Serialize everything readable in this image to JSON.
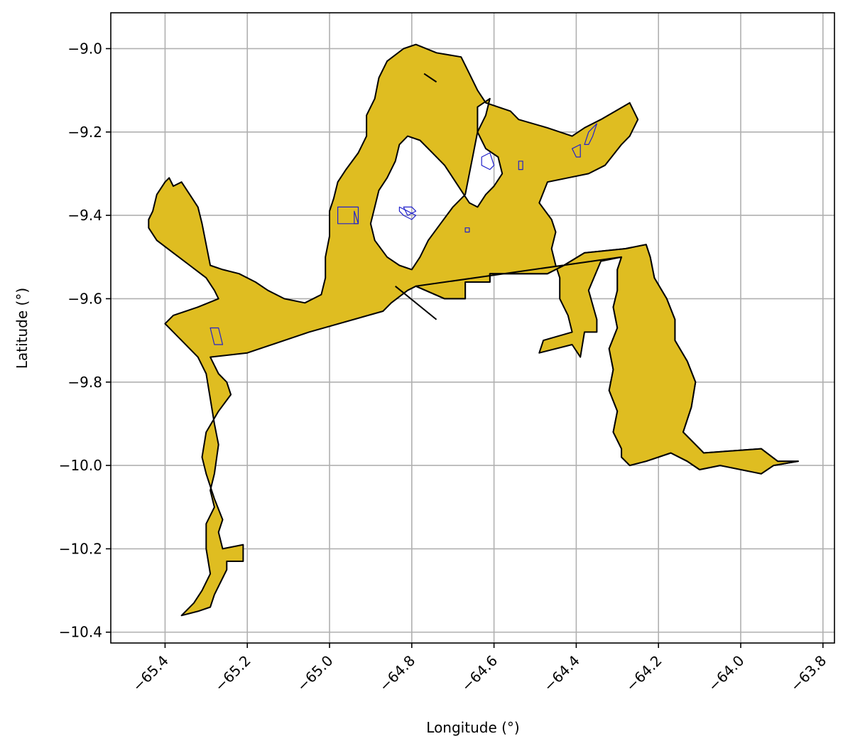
{
  "chart_data": {
    "type": "map",
    "xlabel": "Longitude (°)",
    "ylabel": "Latitude (°)",
    "xlim": [
      -65.532,
      -63.772
    ],
    "ylim": [
      -10.426,
      -8.914
    ],
    "xticks": [
      -65.4,
      -65.2,
      -65.0,
      -64.8,
      -64.6,
      -64.4,
      -64.2,
      -64.0,
      -63.8
    ],
    "xtick_labels": [
      "−65.4",
      "−65.2",
      "−65.0",
      "−64.8",
      "−64.6",
      "−64.4",
      "−64.2",
      "−64.0",
      "−63.8"
    ],
    "yticks": [
      -9.0,
      -9.2,
      -9.4,
      -9.6,
      -9.8,
      -10.0,
      -10.2,
      -10.4
    ],
    "ytick_labels": [
      "−9.0",
      "−9.2",
      "−9.4",
      "−9.6",
      "−9.8",
      "−10.0",
      "−10.2",
      "−10.4"
    ],
    "grid": true,
    "fill_color": "#DFBD21",
    "edge_color": "#000000",
    "inner_edge_color": "#2222cc",
    "main_region": [
      [
        -65.36,
        -10.36
      ],
      [
        -65.32,
        -10.35
      ],
      [
        -65.29,
        -10.34
      ],
      [
        -65.28,
        -10.31
      ],
      [
        -65.26,
        -10.27
      ],
      [
        -65.25,
        -10.25
      ],
      [
        -65.25,
        -10.23
      ],
      [
        -65.21,
        -10.23
      ],
      [
        -65.21,
        -10.19
      ],
      [
        -65.26,
        -10.2
      ],
      [
        -65.27,
        -10.16
      ],
      [
        -65.26,
        -10.13
      ],
      [
        -65.28,
        -10.08
      ],
      [
        -65.29,
        -10.05
      ],
      [
        -65.3,
        -10.02
      ],
      [
        -65.31,
        -9.98
      ],
      [
        -65.3,
        -9.92
      ],
      [
        -65.27,
        -9.87
      ],
      [
        -65.24,
        -9.83
      ],
      [
        -65.25,
        -9.8
      ],
      [
        -65.27,
        -9.78
      ],
      [
        -65.29,
        -9.74
      ],
      [
        -65.2,
        -9.73
      ],
      [
        -65.05,
        -9.68
      ],
      [
        -64.87,
        -9.63
      ],
      [
        -64.85,
        -9.61
      ],
      [
        -64.81,
        -9.58
      ],
      [
        -64.79,
        -9.57
      ],
      [
        -64.72,
        -9.6
      ],
      [
        -64.67,
        -9.6
      ],
      [
        -64.67,
        -9.56
      ],
      [
        -64.61,
        -9.56
      ],
      [
        -64.61,
        -9.54
      ],
      [
        -64.47,
        -9.54
      ],
      [
        -64.43,
        -9.52
      ],
      [
        -64.38,
        -9.49
      ],
      [
        -64.28,
        -9.48
      ],
      [
        -64.23,
        -9.47
      ],
      [
        -64.22,
        -9.5
      ],
      [
        -64.21,
        -9.55
      ],
      [
        -64.18,
        -9.6
      ],
      [
        -64.16,
        -9.65
      ],
      [
        -64.16,
        -9.7
      ],
      [
        -64.13,
        -9.75
      ],
      [
        -64.11,
        -9.8
      ],
      [
        -64.12,
        -9.86
      ],
      [
        -64.14,
        -9.92
      ],
      [
        -64.1,
        -9.96
      ],
      [
        -64.09,
        -9.97
      ],
      [
        -63.95,
        -9.96
      ],
      [
        -63.91,
        -9.99
      ],
      [
        -63.86,
        -9.99
      ],
      [
        -63.92,
        -10.0
      ],
      [
        -63.95,
        -10.02
      ],
      [
        -64.05,
        -10.0
      ],
      [
        -64.1,
        -10.01
      ],
      [
        -64.13,
        -9.99
      ],
      [
        -64.17,
        -9.97
      ],
      [
        -64.23,
        -9.99
      ],
      [
        -64.27,
        -10.0
      ],
      [
        -64.29,
        -9.98
      ],
      [
        -64.29,
        -9.96
      ],
      [
        -64.31,
        -9.92
      ],
      [
        -64.3,
        -9.87
      ],
      [
        -64.32,
        -9.82
      ],
      [
        -64.31,
        -9.77
      ],
      [
        -64.32,
        -9.72
      ],
      [
        -64.3,
        -9.67
      ],
      [
        -64.31,
        -9.62
      ],
      [
        -64.3,
        -9.58
      ],
      [
        -64.3,
        -9.53
      ],
      [
        -64.29,
        -9.5
      ],
      [
        -64.34,
        -9.51
      ],
      [
        -64.37,
        -9.58
      ],
      [
        -64.35,
        -9.65
      ],
      [
        -64.35,
        -9.68
      ],
      [
        -64.38,
        -9.68
      ],
      [
        -64.39,
        -9.74
      ],
      [
        -64.41,
        -9.71
      ],
      [
        -64.49,
        -9.73
      ],
      [
        -64.48,
        -9.7
      ],
      [
        -64.41,
        -9.68
      ],
      [
        -64.42,
        -9.64
      ],
      [
        -64.44,
        -9.6
      ],
      [
        -64.44,
        -9.55
      ],
      [
        -64.45,
        -9.52
      ],
      [
        -64.46,
        -9.48
      ],
      [
        -64.45,
        -9.44
      ],
      [
        -64.46,
        -9.41
      ],
      [
        -64.49,
        -9.37
      ],
      [
        -64.47,
        -9.32
      ],
      [
        -64.42,
        -9.31
      ],
      [
        -64.37,
        -9.3
      ],
      [
        -64.33,
        -9.28
      ],
      [
        -64.29,
        -9.23
      ],
      [
        -64.27,
        -9.21
      ],
      [
        -64.25,
        -9.17
      ],
      [
        -64.27,
        -9.13
      ],
      [
        -64.34,
        -9.17
      ],
      [
        -64.38,
        -9.19
      ],
      [
        -64.41,
        -9.21
      ],
      [
        -64.47,
        -9.19
      ],
      [
        -64.54,
        -9.17
      ],
      [
        -64.56,
        -9.15
      ],
      [
        -64.59,
        -9.14
      ],
      [
        -64.62,
        -9.13
      ],
      [
        -64.64,
        -9.1
      ],
      [
        -64.66,
        -9.06
      ],
      [
        -64.68,
        -9.02
      ],
      [
        -64.74,
        -9.01
      ],
      [
        -64.79,
        -8.99
      ],
      [
        -64.82,
        -9.0
      ],
      [
        -64.86,
        -9.03
      ],
      [
        -64.88,
        -9.07
      ],
      [
        -64.89,
        -9.12
      ],
      [
        -64.91,
        -9.16
      ],
      [
        -64.91,
        -9.21
      ],
      [
        -64.93,
        -9.25
      ],
      [
        -64.96,
        -9.29
      ],
      [
        -64.98,
        -9.32
      ],
      [
        -64.99,
        -9.36
      ],
      [
        -65.0,
        -9.39
      ],
      [
        -65.0,
        -9.45
      ],
      [
        -65.01,
        -9.5
      ],
      [
        -65.01,
        -9.55
      ],
      [
        -65.02,
        -9.59
      ],
      [
        -65.06,
        -9.61
      ],
      [
        -65.11,
        -9.6
      ],
      [
        -65.15,
        -9.58
      ],
      [
        -65.18,
        -9.56
      ],
      [
        -65.22,
        -9.54
      ],
      [
        -65.26,
        -9.53
      ],
      [
        -65.29,
        -9.52
      ],
      [
        -65.3,
        -9.47
      ],
      [
        -65.31,
        -9.42
      ],
      [
        -65.32,
        -9.38
      ],
      [
        -65.34,
        -9.35
      ],
      [
        -65.36,
        -9.32
      ],
      [
        -65.38,
        -9.33
      ],
      [
        -65.39,
        -9.31
      ],
      [
        -65.4,
        -9.32
      ],
      [
        -65.42,
        -9.35
      ],
      [
        -65.43,
        -9.39
      ],
      [
        -65.44,
        -9.41
      ],
      [
        -65.44,
        -9.43
      ],
      [
        -65.42,
        -9.46
      ],
      [
        -65.38,
        -9.49
      ],
      [
        -65.34,
        -9.52
      ],
      [
        -65.3,
        -9.55
      ],
      [
        -65.28,
        -9.58
      ],
      [
        -65.27,
        -9.6
      ],
      [
        -65.32,
        -9.62
      ],
      [
        -65.38,
        -9.64
      ],
      [
        -65.4,
        -9.66
      ],
      [
        -65.36,
        -9.7
      ],
      [
        -65.32,
        -9.74
      ],
      [
        -65.3,
        -9.78
      ],
      [
        -65.29,
        -9.84
      ],
      [
        -65.28,
        -9.9
      ],
      [
        -65.27,
        -9.95
      ],
      [
        -65.28,
        -10.02
      ],
      [
        -65.29,
        -10.06
      ],
      [
        -65.28,
        -10.1
      ],
      [
        -65.3,
        -10.14
      ],
      [
        -65.3,
        -10.2
      ],
      [
        -65.29,
        -10.26
      ],
      [
        -65.31,
        -10.3
      ],
      [
        -65.33,
        -10.33
      ]
    ],
    "holes": [
      [
        [
          -64.61,
          -9.12
        ],
        [
          -64.64,
          -9.14
        ],
        [
          -64.64,
          -9.2
        ],
        [
          -64.62,
          -9.24
        ],
        [
          -64.59,
          -9.26
        ],
        [
          -64.58,
          -9.3
        ],
        [
          -64.6,
          -9.33
        ],
        [
          -64.62,
          -9.35
        ],
        [
          -64.64,
          -9.38
        ],
        [
          -64.66,
          -9.37
        ],
        [
          -64.68,
          -9.34
        ],
        [
          -64.7,
          -9.31
        ],
        [
          -64.72,
          -9.28
        ],
        [
          -64.75,
          -9.25
        ],
        [
          -64.78,
          -9.22
        ],
        [
          -64.81,
          -9.21
        ],
        [
          -64.83,
          -9.23
        ],
        [
          -64.84,
          -9.27
        ],
        [
          -64.86,
          -9.31
        ],
        [
          -64.88,
          -9.34
        ],
        [
          -64.89,
          -9.38
        ],
        [
          -64.9,
          -9.42
        ],
        [
          -64.89,
          -9.46
        ],
        [
          -64.86,
          -9.5
        ],
        [
          -64.83,
          -9.52
        ],
        [
          -64.8,
          -9.53
        ],
        [
          -64.78,
          -9.5
        ],
        [
          -64.76,
          -9.46
        ],
        [
          -64.73,
          -9.42
        ],
        [
          -64.7,
          -9.38
        ],
        [
          -64.67,
          -9.35
        ],
        [
          -64.66,
          -9.3
        ],
        [
          -64.65,
          -9.25
        ],
        [
          -64.64,
          -9.2
        ],
        [
          -64.62,
          -9.16
        ]
      ]
    ],
    "outer_polygon": [
      [
        -64.79,
        -9.57
      ],
      [
        -64.72,
        -9.6
      ],
      [
        -64.67,
        -9.6
      ],
      [
        -64.67,
        -9.56
      ],
      [
        -64.61,
        -9.56
      ],
      [
        -64.61,
        -9.54
      ],
      [
        -64.47,
        -9.54
      ],
      [
        -64.43,
        -9.52
      ],
      [
        -64.38,
        -9.49
      ],
      [
        -64.28,
        -9.48
      ],
      [
        -64.23,
        -9.47
      ],
      [
        -64.22,
        -9.5
      ],
      [
        -64.21,
        -9.55
      ],
      [
        -64.18,
        -9.6
      ],
      [
        -64.16,
        -9.65
      ],
      [
        -64.16,
        -9.7
      ],
      [
        -64.13,
        -9.75
      ],
      [
        -64.11,
        -9.8
      ],
      [
        -64.12,
        -9.86
      ],
      [
        -64.14,
        -9.92
      ],
      [
        -64.1,
        -9.96
      ],
      [
        -64.09,
        -9.97
      ],
      [
        -63.95,
        -9.96
      ],
      [
        -63.91,
        -9.99
      ],
      [
        -63.86,
        -9.99
      ],
      [
        -63.92,
        -10.0
      ],
      [
        -63.95,
        -10.02
      ],
      [
        -64.05,
        -10.0
      ],
      [
        -64.1,
        -10.01
      ],
      [
        -64.13,
        -9.99
      ],
      [
        -64.17,
        -9.97
      ],
      [
        -64.23,
        -9.99
      ],
      [
        -64.27,
        -10.0
      ],
      [
        -64.29,
        -9.98
      ],
      [
        -64.29,
        -9.96
      ],
      [
        -64.31,
        -9.92
      ],
      [
        -64.3,
        -9.87
      ],
      [
        -64.32,
        -9.82
      ],
      [
        -64.31,
        -9.77
      ],
      [
        -64.32,
        -9.72
      ],
      [
        -64.3,
        -9.67
      ],
      [
        -64.31,
        -9.62
      ],
      [
        -64.3,
        -9.58
      ],
      [
        -64.3,
        -9.53
      ],
      [
        -64.29,
        -9.5
      ]
    ],
    "line_segments": [
      [
        [
          -64.84,
          -9.57
        ],
        [
          -64.74,
          -9.65
        ]
      ],
      [
        [
          -64.77,
          -9.06
        ],
        [
          -64.74,
          -9.08
        ]
      ]
    ],
    "inner_polygons": [
      [
        [
          -64.98,
          -9.38
        ],
        [
          -64.93,
          -9.38
        ],
        [
          -64.93,
          -9.42
        ],
        [
          -64.98,
          -9.42
        ]
      ],
      [
        [
          -64.94,
          -9.39
        ],
        [
          -64.93,
          -9.42
        ],
        [
          -64.94,
          -9.42
        ]
      ],
      [
        [
          -64.83,
          -9.38
        ],
        [
          -64.81,
          -9.39
        ],
        [
          -64.79,
          -9.4
        ],
        [
          -64.8,
          -9.41
        ],
        [
          -64.82,
          -9.4
        ],
        [
          -64.83,
          -9.39
        ]
      ],
      [
        [
          -64.82,
          -9.38
        ],
        [
          -64.8,
          -9.38
        ],
        [
          -64.79,
          -9.39
        ],
        [
          -64.81,
          -9.4
        ]
      ],
      [
        [
          -64.67,
          -9.43
        ],
        [
          -64.66,
          -9.43
        ],
        [
          -64.66,
          -9.44
        ],
        [
          -64.67,
          -9.44
        ]
      ],
      [
        [
          -64.63,
          -9.26
        ],
        [
          -64.61,
          -9.25
        ],
        [
          -64.6,
          -9.28
        ],
        [
          -64.61,
          -9.29
        ],
        [
          -64.63,
          -9.28
        ]
      ],
      [
        [
          -64.54,
          -9.27
        ],
        [
          -64.53,
          -9.27
        ],
        [
          -64.53,
          -9.29
        ],
        [
          -64.54,
          -9.29
        ]
      ],
      [
        [
          -64.41,
          -9.24
        ],
        [
          -64.39,
          -9.23
        ],
        [
          -64.39,
          -9.26
        ],
        [
          -64.4,
          -9.26
        ]
      ],
      [
        [
          -64.38,
          -9.23
        ],
        [
          -64.37,
          -9.2
        ],
        [
          -64.35,
          -9.18
        ],
        [
          -64.36,
          -9.21
        ],
        [
          -64.37,
          -9.23
        ]
      ],
      [
        [
          -65.29,
          -9.67
        ],
        [
          -65.27,
          -9.67
        ],
        [
          -65.26,
          -9.71
        ],
        [
          -65.28,
          -9.71
        ]
      ]
    ]
  }
}
